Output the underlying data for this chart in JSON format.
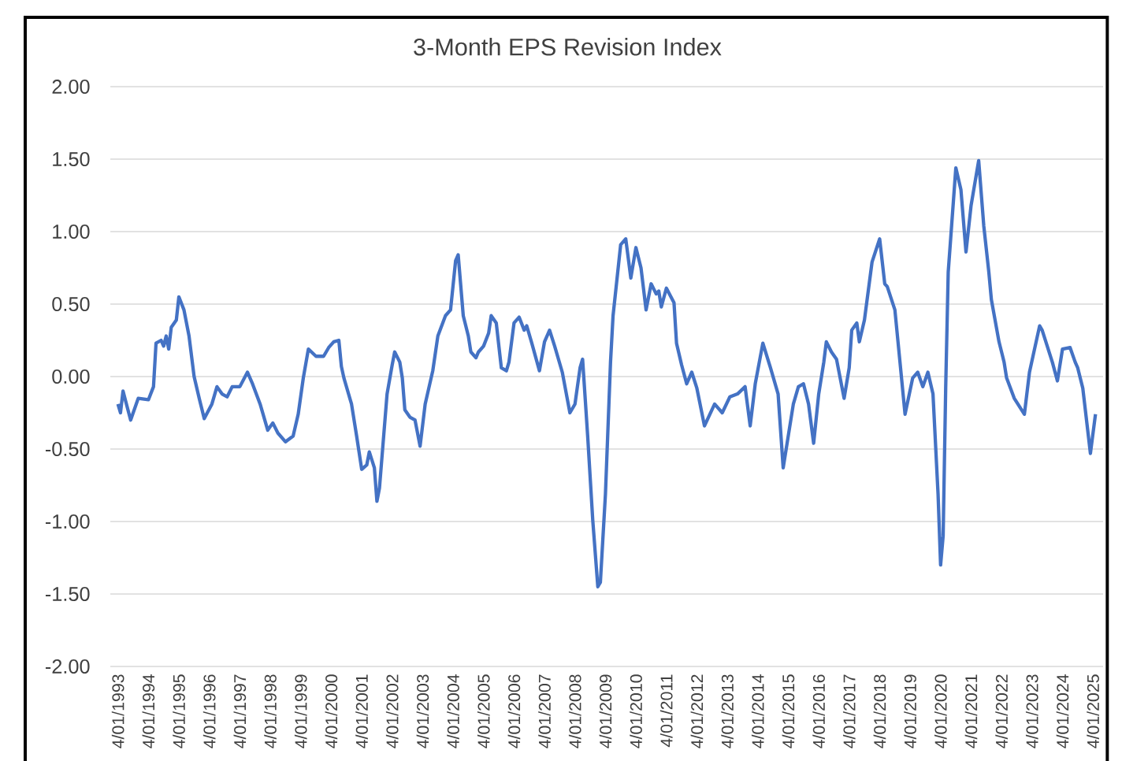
{
  "chart_data": {
    "type": "line",
    "title": "3-Month EPS Revision Index",
    "xlim": [
      "1993-01",
      "2025-08"
    ],
    "ylim": [
      -2,
      2
    ],
    "xticks": [
      {
        "value": "1993-04-01",
        "label": "4/01/1993"
      },
      {
        "value": "1994-04-01",
        "label": "4/01/1994"
      },
      {
        "value": "1995-04-01",
        "label": "4/01/1995"
      },
      {
        "value": "1996-04-01",
        "label": "4/01/1996"
      },
      {
        "value": "1997-04-01",
        "label": "4/01/1997"
      },
      {
        "value": "1998-04-01",
        "label": "4/01/1998"
      },
      {
        "value": "1999-04-01",
        "label": "4/01/1999"
      },
      {
        "value": "2000-04-01",
        "label": "4/01/2000"
      },
      {
        "value": "2001-04-01",
        "label": "4/01/2001"
      },
      {
        "value": "2002-04-01",
        "label": "4/01/2002"
      },
      {
        "value": "2003-04-01",
        "label": "4/01/2003"
      },
      {
        "value": "2004-04-01",
        "label": "4/01/2004"
      },
      {
        "value": "2005-04-01",
        "label": "4/01/2005"
      },
      {
        "value": "2006-04-01",
        "label": "4/01/2006"
      },
      {
        "value": "2007-04-01",
        "label": "4/01/2007"
      },
      {
        "value": "2008-04-01",
        "label": "4/01/2008"
      },
      {
        "value": "2009-04-01",
        "label": "4/01/2009"
      },
      {
        "value": "2010-04-01",
        "label": "4/01/2010"
      },
      {
        "value": "2011-04-01",
        "label": "4/01/2011"
      },
      {
        "value": "2012-04-01",
        "label": "4/01/2012"
      },
      {
        "value": "2013-04-01",
        "label": "4/01/2013"
      },
      {
        "value": "2014-04-01",
        "label": "4/01/2014"
      },
      {
        "value": "2015-04-01",
        "label": "4/01/2015"
      },
      {
        "value": "2016-04-01",
        "label": "4/01/2016"
      },
      {
        "value": "2017-04-01",
        "label": "4/01/2017"
      },
      {
        "value": "2018-04-01",
        "label": "4/01/2018"
      },
      {
        "value": "2019-04-01",
        "label": "4/01/2019"
      },
      {
        "value": "2020-04-01",
        "label": "4/01/2020"
      },
      {
        "value": "2021-04-01",
        "label": "4/01/2021"
      },
      {
        "value": "2022-04-01",
        "label": "4/01/2022"
      },
      {
        "value": "2023-04-01",
        "label": "4/01/2023"
      },
      {
        "value": "2024-04-01",
        "label": "4/01/2024"
      },
      {
        "value": "2025-04-01",
        "label": "4/01/2025"
      }
    ],
    "yticks": [
      {
        "value": 2,
        "label": "2.00"
      },
      {
        "value": 1.5,
        "label": "1.50"
      },
      {
        "value": 1,
        "label": "1.00"
      },
      {
        "value": 0.5,
        "label": "0.50"
      },
      {
        "value": 0,
        "label": "0.00"
      },
      {
        "value": -0.5,
        "label": "-0.50"
      },
      {
        "value": -1,
        "label": "-1.00"
      },
      {
        "value": -1.5,
        "label": "-1.50"
      },
      {
        "value": -2,
        "label": "-2.00"
      }
    ],
    "grid": "y",
    "color": "#4472c4",
    "x": [
      "1993-04",
      "1993-05",
      "1993-06",
      "1993-09",
      "1993-12",
      "1994-04",
      "1994-06",
      "1994-07",
      "1994-09",
      "1994-10",
      "1994-11",
      "1994-12",
      "1995-01",
      "1995-03",
      "1995-04",
      "1995-06",
      "1995-08",
      "1995-10",
      "1995-12",
      "1996-02",
      "1996-05",
      "1996-07",
      "1996-09",
      "1996-11",
      "1997-01",
      "1997-04",
      "1997-07",
      "1997-09",
      "1997-12",
      "1998-03",
      "1998-05",
      "1998-07",
      "1998-10",
      "1999-01",
      "1999-03",
      "1999-05",
      "1999-07",
      "1999-10",
      "2000-01",
      "2000-03",
      "2000-05",
      "2000-07",
      "2000-08",
      "2000-09",
      "2000-12",
      "2001-02",
      "2001-04",
      "2001-06",
      "2001-07",
      "2001-09",
      "2001-10",
      "2001-11",
      "2002-02",
      "2002-04",
      "2002-05",
      "2002-07",
      "2002-08",
      "2002-09",
      "2002-11",
      "2003-01",
      "2003-03",
      "2003-05",
      "2003-08",
      "2003-10",
      "2004-01",
      "2004-03",
      "2004-05",
      "2004-06",
      "2004-08",
      "2004-10",
      "2004-11",
      "2005-01",
      "2005-02",
      "2005-04",
      "2005-06",
      "2005-07",
      "2005-09",
      "2005-11",
      "2006-01",
      "2006-02",
      "2006-04",
      "2006-06",
      "2006-08",
      "2006-09",
      "2006-11",
      "2007-02",
      "2007-04",
      "2007-06",
      "2007-08",
      "2007-11",
      "2008-02",
      "2008-04",
      "2008-06",
      "2008-07",
      "2008-09",
      "2008-11",
      "2009-01",
      "2009-02",
      "2009-04",
      "2009-06",
      "2009-07",
      "2009-10",
      "2009-12",
      "2010-02",
      "2010-04",
      "2010-06",
      "2010-08",
      "2010-10",
      "2010-12",
      "2011-01",
      "2011-02",
      "2011-04",
      "2011-07",
      "2011-08",
      "2011-10",
      "2011-12",
      "2012-02",
      "2012-04",
      "2012-07",
      "2012-11",
      "2013-02",
      "2013-05",
      "2013-08",
      "2013-11",
      "2014-01",
      "2014-03",
      "2014-06",
      "2014-09",
      "2014-12",
      "2015-02",
      "2015-06",
      "2015-08",
      "2015-10",
      "2015-12",
      "2016-02",
      "2016-04",
      "2016-06",
      "2016-07",
      "2016-09",
      "2016-11",
      "2017-02",
      "2017-04",
      "2017-05",
      "2017-07",
      "2017-08",
      "2017-10",
      "2018-01",
      "2018-04",
      "2018-06",
      "2018-07",
      "2018-10",
      "2018-12",
      "2019-02",
      "2019-05",
      "2019-07",
      "2019-09",
      "2019-11",
      "2020-01",
      "2020-03",
      "2020-04",
      "2020-05",
      "2020-06",
      "2020-07",
      "2020-10",
      "2020-12",
      "2021-02",
      "2021-04",
      "2021-07",
      "2021-09",
      "2021-11",
      "2021-12",
      "2022-03",
      "2022-05",
      "2022-06",
      "2022-09",
      "2023-01",
      "2023-03",
      "2023-07",
      "2023-08",
      "2023-12",
      "2024-02",
      "2024-04",
      "2024-07",
      "2024-09",
      "2024-10",
      "2024-12",
      "2025-03",
      "2025-05"
    ],
    "values": [
      -0.19,
      -0.25,
      -0.1,
      -0.3,
      -0.15,
      -0.16,
      -0.07,
      0.23,
      0.25,
      0.21,
      0.28,
      0.19,
      0.34,
      0.39,
      0.55,
      0.46,
      0.28,
      0.0,
      -0.15,
      -0.29,
      -0.19,
      -0.07,
      -0.12,
      -0.14,
      -0.07,
      -0.07,
      0.03,
      -0.05,
      -0.19,
      -0.37,
      -0.32,
      -0.39,
      -0.45,
      -0.41,
      -0.26,
      -0.01,
      0.19,
      0.14,
      0.14,
      0.2,
      0.24,
      0.25,
      0.07,
      -0.01,
      -0.19,
      -0.41,
      -0.64,
      -0.61,
      -0.52,
      -0.63,
      -0.86,
      -0.77,
      -0.12,
      0.08,
      0.17,
      0.1,
      -0.01,
      -0.23,
      -0.28,
      -0.3,
      -0.48,
      -0.19,
      0.04,
      0.28,
      0.42,
      0.46,
      0.8,
      0.84,
      0.42,
      0.28,
      0.17,
      0.13,
      0.17,
      0.21,
      0.3,
      0.42,
      0.37,
      0.06,
      0.04,
      0.1,
      0.37,
      0.41,
      0.32,
      0.35,
      0.23,
      0.04,
      0.24,
      0.32,
      0.21,
      0.03,
      -0.25,
      -0.19,
      0.06,
      0.12,
      -0.41,
      -0.99,
      -1.45,
      -1.42,
      -0.81,
      0.1,
      0.42,
      0.91,
      0.95,
      0.68,
      0.89,
      0.75,
      0.46,
      0.64,
      0.57,
      0.59,
      0.48,
      0.61,
      0.51,
      0.23,
      0.08,
      -0.05,
      0.03,
      -0.08,
      -0.34,
      -0.19,
      -0.25,
      -0.14,
      -0.12,
      -0.07,
      -0.34,
      -0.05,
      0.23,
      0.06,
      -0.12,
      -0.63,
      -0.19,
      -0.07,
      -0.05,
      -0.19,
      -0.46,
      -0.12,
      0.1,
      0.24,
      0.17,
      0.12,
      -0.15,
      0.06,
      0.32,
      0.37,
      0.24,
      0.39,
      0.79,
      0.95,
      0.64,
      0.62,
      0.46,
      0.1,
      -0.26,
      -0.01,
      0.03,
      -0.07,
      0.03,
      -0.12,
      -0.81,
      -1.3,
      -1.1,
      -0.08,
      0.72,
      1.44,
      1.29,
      0.86,
      1.18,
      1.49,
      1.04,
      0.72,
      0.53,
      0.24,
      0.1,
      -0.01,
      -0.15,
      -0.26,
      0.03,
      0.35,
      0.32,
      0.1,
      -0.03,
      0.19,
      0.2,
      0.1,
      0.06,
      -0.08,
      -0.53,
      -0.26
    ]
  }
}
